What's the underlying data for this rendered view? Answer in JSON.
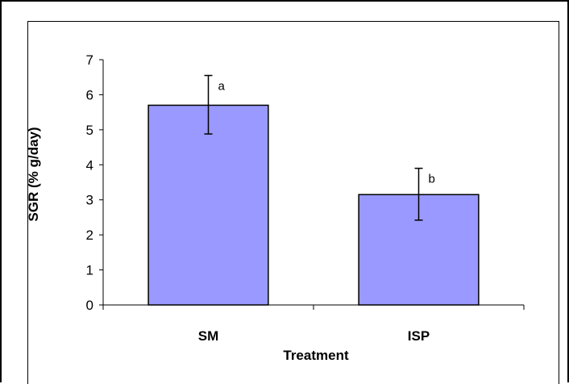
{
  "chart_data": {
    "type": "bar",
    "title": "",
    "xlabel": "Treatment",
    "ylabel": "SGR (% g/day)",
    "ylim": [
      0,
      7
    ],
    "yticks": [
      0,
      1,
      2,
      3,
      4,
      5,
      6,
      7
    ],
    "categories": [
      "SM",
      "ISP"
    ],
    "values": [
      5.7,
      3.15
    ],
    "error_high": [
      6.55,
      3.9
    ],
    "error_low": [
      4.88,
      2.42
    ],
    "annotations": [
      "a",
      "b"
    ],
    "bar_color": "#9999ff",
    "grid": false,
    "legend": "none"
  }
}
